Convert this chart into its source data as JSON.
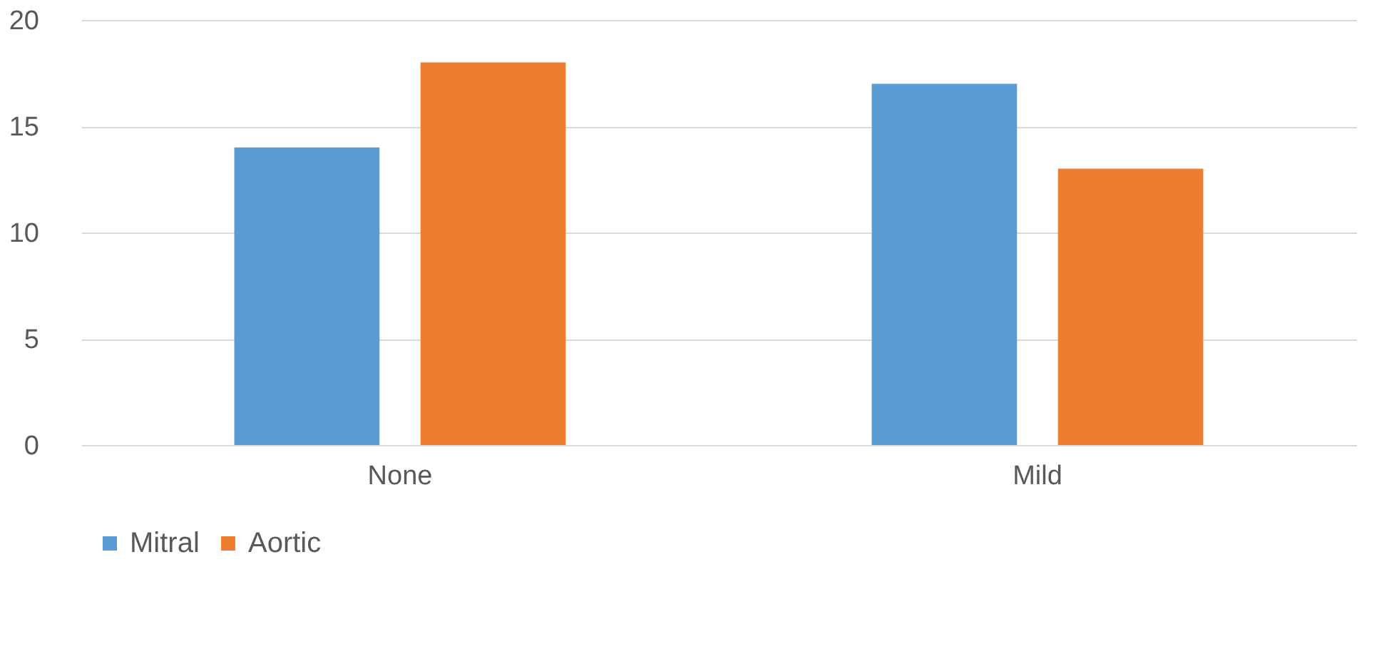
{
  "chart_data": {
    "type": "bar",
    "categories": [
      "None",
      "Mild"
    ],
    "series": [
      {
        "name": "Mitral",
        "color": "#5b9bd5",
        "values": [
          14,
          17
        ]
      },
      {
        "name": "Aortic",
        "color": "#ed7d31",
        "values": [
          18,
          13
        ]
      }
    ],
    "ylim": [
      0,
      20
    ],
    "yticks": [
      0,
      5,
      10,
      15,
      20
    ],
    "grid": "y",
    "legend": "bottom"
  }
}
